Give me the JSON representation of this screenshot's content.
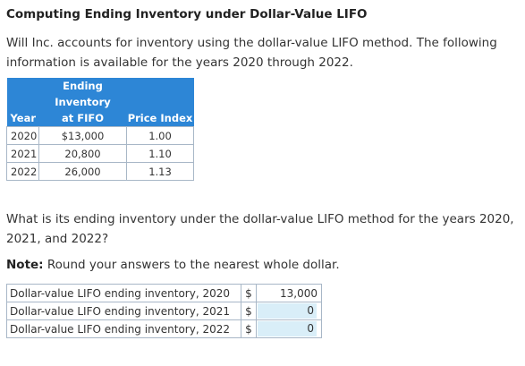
{
  "title": "Computing Ending Inventory under Dollar-Value LIFO",
  "intro": "Will Inc. accounts for inventory using the dollar-value LIFO method. The following information is available for the years 2020 through 2022.",
  "table": {
    "header": {
      "year": "Year",
      "fifo_line1": "Ending Inventory",
      "fifo_line2": "at FIFO",
      "index": "Price Index"
    },
    "rows": [
      {
        "year": "2020",
        "fifo": "$13,000",
        "index": "1.00"
      },
      {
        "year": "2021",
        "fifo": "20,800",
        "index": "1.10"
      },
      {
        "year": "2022",
        "fifo": "26,000",
        "index": "1.13"
      }
    ]
  },
  "question": "What is its ending inventory under the dollar-value LIFO method for the years 2020, 2021, and 2022?",
  "note": {
    "label": "Note:",
    "text": " Round your answers to the nearest whole dollar."
  },
  "answers": [
    {
      "label": "Dollar-value LIFO ending inventory, 2020",
      "currency": "$",
      "value": "13,000"
    },
    {
      "label": "Dollar-value LIFO ending inventory, 2021",
      "currency": "$",
      "value": "0"
    },
    {
      "label": "Dollar-value LIFO ending inventory, 2022",
      "currency": "$",
      "value": "0"
    }
  ],
  "colors": {
    "header_bg": "#2d86d6",
    "input_bg": "#d9eef8",
    "border": "#a8b7c7"
  }
}
